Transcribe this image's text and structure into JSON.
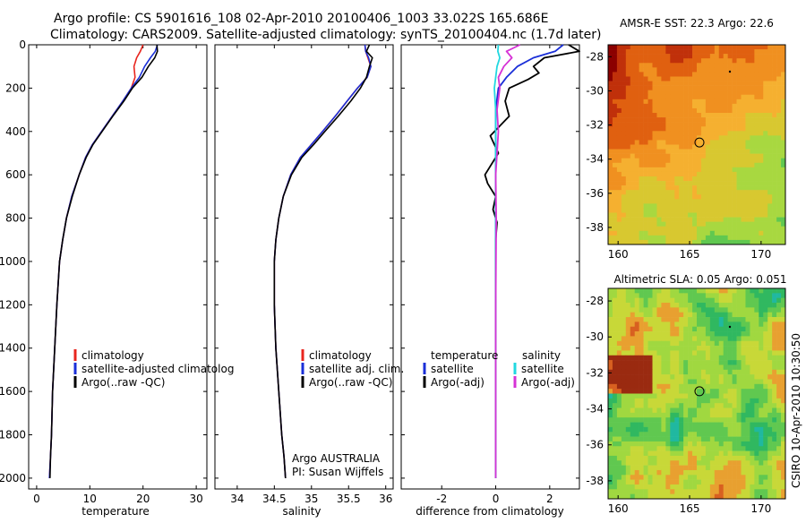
{
  "header": {
    "title_line1": "Argo profile: CS 5901616_108 02-Apr-2010 20100406_1003 33.022S 165.686E",
    "title_line2": "Climatology: CARS2009. Satellite-adjusted climatology: synTS_20100404.nc (1.7d later)"
  },
  "colors": {
    "climatology": "#e8251e",
    "satellite": "#1a2fd8",
    "argo": "#000000",
    "satellite_salinity": "#22d8e0",
    "argo_salinity": "#d632d6"
  },
  "chart_data": [
    {
      "type": "line",
      "id": "temperature",
      "xlabel": "temperature",
      "ylabel": "",
      "xlim": [
        -1.5,
        32
      ],
      "ylim": [
        2050,
        0
      ],
      "xticks": [
        0,
        10,
        20,
        30
      ],
      "yticks": [
        0,
        200,
        400,
        600,
        800,
        1000,
        1200,
        1400,
        1600,
        1800,
        2000
      ],
      "legend": [
        "climatology",
        "satellite-adjusted climatolog",
        "Argo(..raw -QC)"
      ],
      "series": [
        {
          "name": "climatology",
          "x": [
            20,
            19.5,
            18.8,
            18.3,
            18.5,
            17.8,
            16.2,
            14.2,
            12.2,
            10.5,
            9.2,
            8.0,
            6.6,
            5.6,
            4.9,
            4.3,
            3.8,
            3.4,
            3.0,
            2.8,
            2.6,
            2.4
          ],
          "y": [
            0,
            30,
            60,
            100,
            150,
            200,
            260,
            330,
            400,
            460,
            520,
            600,
            700,
            800,
            900,
            1000,
            1200,
            1400,
            1600,
            1800,
            1900,
            2000
          ]
        },
        {
          "name": "satellite-adjusted climatolog",
          "x": [
            22.7,
            22.3,
            21.4,
            20.3,
            19.3,
            17.8,
            16.2,
            14.2,
            12.2,
            10.5,
            9.2,
            8.0,
            6.6,
            5.6,
            4.9,
            4.3,
            3.8,
            3.4,
            3.0,
            2.8,
            2.6,
            2.4
          ],
          "y": [
            0,
            30,
            60,
            100,
            150,
            200,
            260,
            330,
            400,
            460,
            520,
            600,
            700,
            800,
            900,
            1000,
            1200,
            1400,
            1600,
            1800,
            1900,
            2000
          ]
        },
        {
          "name": "Argo(..raw -QC)",
          "x": [
            22.6,
            22.7,
            22.2,
            21.0,
            19.8,
            18.0,
            16.4,
            14.3,
            12.3,
            10.6,
            9.3,
            8.0,
            6.7,
            5.6,
            4.9,
            4.3,
            3.8,
            3.4,
            3.0,
            2.8,
            2.6,
            2.5
          ],
          "y": [
            0,
            30,
            60,
            100,
            150,
            200,
            260,
            330,
            400,
            460,
            520,
            600,
            700,
            800,
            900,
            1000,
            1200,
            1400,
            1600,
            1800,
            1900,
            2000
          ]
        }
      ]
    },
    {
      "type": "line",
      "id": "salinity",
      "xlabel": "salinity",
      "xlim": [
        33.7,
        36.1
      ],
      "ylim": [
        2050,
        0
      ],
      "xticks": [
        34,
        34.5,
        35,
        35.5,
        36
      ],
      "legend": [
        "climatology",
        "satellite adj. clim.",
        "Argo(..raw -QC)"
      ],
      "annotation_line1": "Argo AUSTRALIA",
      "annotation_line2": "PI: Susan Wijffels",
      "series": [
        {
          "name": "climatology",
          "x": [
            35.72,
            35.73,
            35.76,
            35.8,
            35.75,
            35.62,
            35.48,
            35.32,
            35.15,
            35.0,
            34.85,
            34.72,
            34.62,
            34.56,
            34.52,
            34.5,
            34.5,
            34.52,
            34.56,
            34.6,
            34.63,
            34.65
          ],
          "y": [
            0,
            30,
            60,
            100,
            150,
            200,
            260,
            330,
            400,
            460,
            520,
            600,
            700,
            800,
            900,
            1000,
            1200,
            1400,
            1600,
            1800,
            1900,
            2000
          ]
        },
        {
          "name": "satellite adj. clim.",
          "x": [
            35.72,
            35.73,
            35.77,
            35.8,
            35.75,
            35.62,
            35.48,
            35.32,
            35.15,
            35.0,
            34.85,
            34.72,
            34.62,
            34.56,
            34.52,
            34.5,
            34.5,
            34.52,
            34.56,
            34.6,
            34.63,
            34.65
          ],
          "y": [
            0,
            30,
            60,
            100,
            150,
            200,
            260,
            330,
            400,
            460,
            520,
            600,
            700,
            800,
            900,
            1000,
            1200,
            1400,
            1600,
            1800,
            1900,
            2000
          ]
        },
        {
          "name": "Argo(..raw -QC)",
          "x": [
            35.78,
            35.74,
            35.82,
            35.78,
            35.74,
            35.66,
            35.53,
            35.36,
            35.18,
            35.03,
            34.87,
            34.73,
            34.62,
            34.56,
            34.52,
            34.5,
            34.5,
            34.52,
            34.56,
            34.6,
            34.63,
            34.65
          ],
          "y": [
            0,
            30,
            60,
            100,
            150,
            200,
            260,
            330,
            400,
            460,
            520,
            600,
            700,
            800,
            900,
            1000,
            1200,
            1400,
            1600,
            1800,
            1900,
            2000
          ]
        }
      ]
    },
    {
      "type": "line",
      "id": "difference",
      "xlabel": "difference from climatology",
      "xlim": [
        -3.5,
        3.1
      ],
      "ylim": [
        2050,
        0
      ],
      "xticks": [
        -2,
        0,
        2
      ],
      "legend_headers": [
        "temperature",
        "salinity"
      ],
      "legend": [
        "satellite",
        "Argo(-adj)",
        "satellite",
        "Argo(-adj)"
      ],
      "series": [
        {
          "name": "temperature satellite",
          "group": "temperature",
          "x": [
            2.5,
            2.2,
            1.4,
            0.8,
            0.4,
            0.1,
            0.0,
            0.0,
            0.0,
            0.0,
            0.0,
            0.0,
            0.0,
            0.0,
            0.0
          ],
          "y": [
            0,
            30,
            60,
            100,
            150,
            200,
            300,
            400,
            600,
            800,
            1000,
            1200,
            1600,
            1800,
            2000
          ]
        },
        {
          "name": "Argo(-adj)",
          "group": "temperature",
          "x": [
            2.7,
            3.1,
            1.8,
            1.4,
            1.6,
            1.2,
            0.5,
            0.35,
            0.5,
            -0.2,
            0.1,
            -0.4,
            -0.3,
            0.0,
            -0.1,
            0.05,
            0.0,
            0.0,
            0.0,
            0.0,
            0.0
          ],
          "y": [
            0,
            30,
            60,
            100,
            130,
            160,
            200,
            260,
            330,
            420,
            500,
            600,
            640,
            700,
            760,
            820,
            900,
            1000,
            1400,
            1800,
            2000
          ]
        },
        {
          "name": "salinity satellite",
          "group": "salinity",
          "x": [
            0.1,
            0.08,
            0.15,
            0.05,
            0.0,
            -0.05,
            0.0,
            0.0,
            0.0,
            0.0,
            0.0,
            0.0
          ],
          "y": [
            0,
            30,
            60,
            100,
            150,
            200,
            300,
            400,
            600,
            800,
            1200,
            2000
          ]
        },
        {
          "name": "Argo(-adj)",
          "group": "salinity",
          "x": [
            0.9,
            0.4,
            0.6,
            0.3,
            0.1,
            0.15,
            0.05,
            0.1,
            0.0,
            0.02,
            0.0,
            0.0
          ],
          "y": [
            0,
            30,
            60,
            100,
            150,
            200,
            300,
            400,
            600,
            800,
            1200,
            2000
          ]
        }
      ]
    },
    {
      "type": "heatmap",
      "id": "sst_map",
      "title": "AMSR-E SST: 22.3 Argo: 22.6",
      "xlim": [
        159.3,
        171.7
      ],
      "ylim": [
        -39.0,
        -27.3
      ],
      "xticks": [
        160,
        165,
        170
      ],
      "yticks": [
        -28,
        -30,
        -32,
        -34,
        -36,
        -38
      ],
      "argo_position": [
        165.686,
        -33.022
      ],
      "colors": [
        "#8b0000",
        "#c0300a",
        "#e06010",
        "#f09020",
        "#f5b030",
        "#d8c830",
        "#a8d840",
        "#60c850",
        "#20b870",
        "#30c0b0"
      ]
    },
    {
      "type": "heatmap",
      "id": "sla_map",
      "title": "Altimetric SLA: 0.05 Argo: 0.051",
      "xlim": [
        159.3,
        171.7
      ],
      "ylim": [
        -39.0,
        -27.3
      ],
      "xticks": [
        160,
        165,
        170
      ],
      "yticks": [
        -28,
        -30,
        -32,
        -34,
        -36,
        -38
      ],
      "argo_position": [
        165.686,
        -33.022
      ],
      "colors": [
        "#9a2a10",
        "#d86020",
        "#e8a030",
        "#c8d838",
        "#a0d840",
        "#60c850",
        "#30b860",
        "#20b8a0",
        "#40c8d8"
      ]
    }
  ],
  "side_label": "CSIRO 10-Apr-2010 10:30:50"
}
